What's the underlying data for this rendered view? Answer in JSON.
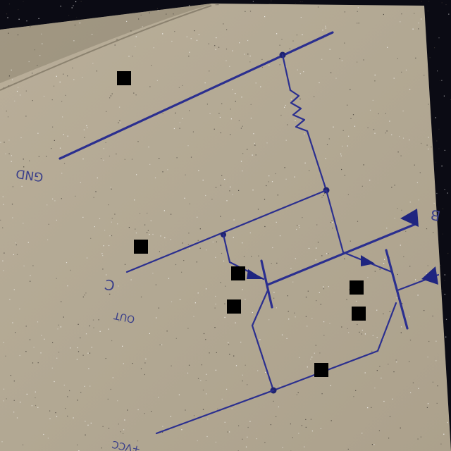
{
  "labels": {
    "gnd": "GND",
    "c": "C",
    "out": "OUT",
    "b": "B",
    "vcc": "+VCC"
  },
  "colors": {
    "paper": "#b3a996",
    "ink": "#2b2f8f",
    "background": "#0b0b14"
  },
  "components": {
    "resistor": "resistor-symbol",
    "transistors": [
      "npn-transistor-q1",
      "npn-transistor-q2"
    ]
  }
}
